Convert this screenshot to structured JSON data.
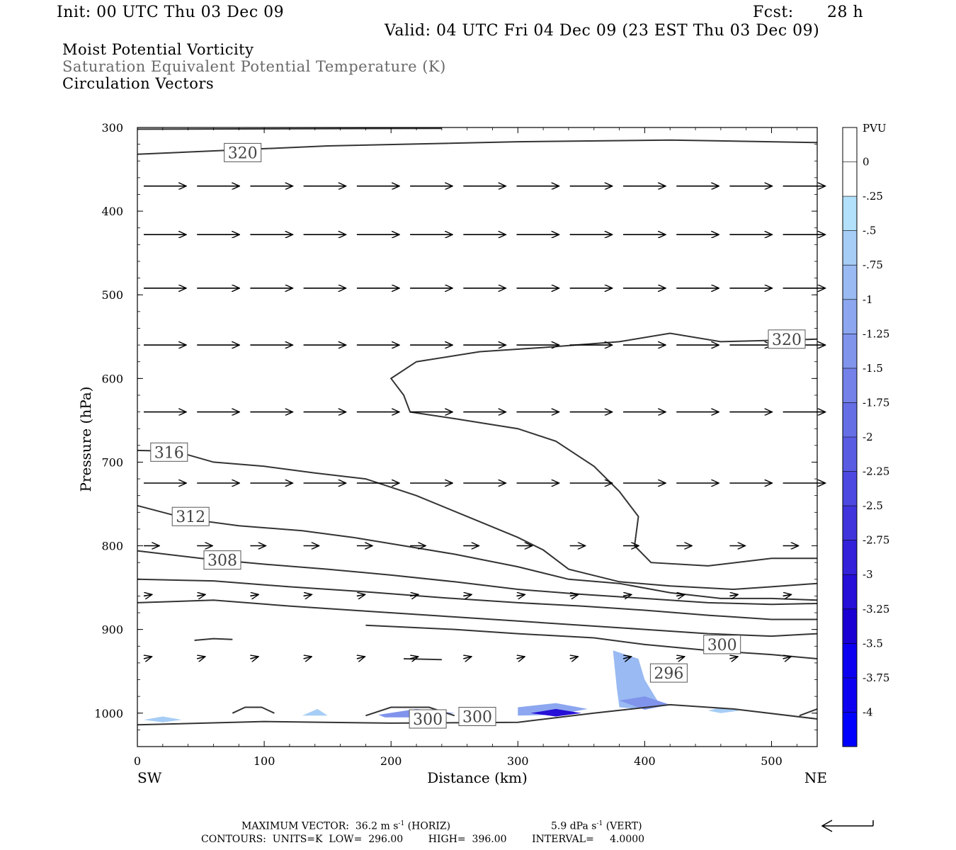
{
  "header": {
    "init": "Init: 00 UTC Thu 03 Dec 09",
    "fcst_label": "Fcst:",
    "fcst_value": "28 h",
    "valid": "Valid: 04 UTC Fri 04 Dec 09 (23 EST Thu 03 Dec 09)"
  },
  "fields": {
    "line1": "Moist Potential Vorticity",
    "line2": "Saturation Equivalent Potential Temperature (K)",
    "line3": "Circulation Vectors"
  },
  "footer": {
    "max_vector_text": "MAXIMUM VECTOR:  36.2 m s",
    "max_vector_horiz": "(HORIZ)",
    "max_vector_vert_val": "5.9 dPa s",
    "max_vector_vert": "(VERT)",
    "sup_exp": "-1",
    "contours_text": "CONTOURS:  UNITS=K  LOW=  296.00        HIGH=  396.00        INTERVAL=     4.0000"
  },
  "colors": {
    "contour": "#333333",
    "pv_levels": [
      "#b3e0fa",
      "#a6cdf6",
      "#99baf2",
      "#8ca7ef",
      "#8094ec",
      "#7381e9",
      "#666ee6",
      "#5a5be3",
      "#4d48e0",
      "#4035dc",
      "#3322d9",
      "#260fd6",
      "#1a00d3",
      "#0d00f0",
      "#0000ff"
    ]
  },
  "chart_data": {
    "type": "cross-section",
    "xlabel": "Distance (km)",
    "ylabel": "Pressure (hPa)",
    "x_range": [
      0,
      536
    ],
    "y_range": [
      300,
      1040
    ],
    "x_ticks": [
      0,
      100,
      200,
      300,
      400,
      500
    ],
    "y_ticks": [
      300,
      400,
      500,
      600,
      700,
      800,
      900,
      1000
    ],
    "x_endpoints": {
      "left": "SW",
      "right": "NE"
    },
    "colorbar": {
      "units": "PVU",
      "labels": [
        "0",
        "-.25",
        "-.5",
        "-.75",
        "-1",
        "-1.25",
        "-1.5",
        "-1.75",
        "-2",
        "-2.25",
        "-2.5",
        "-2.75",
        "-3",
        "-3.25",
        "-3.5",
        "-3.75",
        "-4"
      ]
    },
    "contour_labels": [
      {
        "text": "320",
        "x": 83,
        "p": 330
      },
      {
        "text": "320",
        "x": 512,
        "p": 553
      },
      {
        "text": "316",
        "x": 25,
        "p": 688
      },
      {
        "text": "312",
        "x": 42,
        "p": 765
      },
      {
        "text": "308",
        "x": 67,
        "p": 817
      },
      {
        "text": "300",
        "x": 461,
        "p": 918
      },
      {
        "text": "296",
        "x": 419,
        "p": 952
      },
      {
        "text": "300",
        "x": 229,
        "p": 1007
      },
      {
        "text": "300",
        "x": 268,
        "p": 1004
      }
    ],
    "contours": [
      {
        "level": "320",
        "points": [
          [
            0,
            332
          ],
          [
            150,
            322
          ],
          [
            300,
            317
          ],
          [
            420,
            315
          ],
          [
            536,
            318
          ]
        ]
      },
      {
        "level": "upper",
        "points": [
          [
            0,
            302
          ],
          [
            240,
            301
          ]
        ]
      },
      {
        "level": "320b",
        "points": [
          [
            536,
            553
          ],
          [
            460,
            556
          ],
          [
            420,
            546
          ],
          [
            380,
            556
          ],
          [
            320,
            563
          ],
          [
            270,
            568
          ],
          [
            220,
            580
          ],
          [
            200,
            600
          ],
          [
            210,
            620
          ],
          [
            215,
            640
          ],
          [
            250,
            648
          ],
          [
            300,
            660
          ],
          [
            330,
            675
          ],
          [
            360,
            705
          ],
          [
            380,
            735
          ],
          [
            395,
            765
          ],
          [
            392,
            800
          ],
          [
            405,
            820
          ],
          [
            450,
            824
          ],
          [
            500,
            815
          ],
          [
            536,
            815
          ]
        ]
      },
      {
        "level": "316",
        "points": [
          [
            0,
            686
          ],
          [
            30,
            687
          ],
          [
            60,
            700
          ],
          [
            100,
            705
          ],
          [
            140,
            713
          ],
          [
            180,
            720
          ],
          [
            220,
            740
          ],
          [
            260,
            765
          ],
          [
            300,
            790
          ],
          [
            320,
            805
          ],
          [
            340,
            828
          ],
          [
            380,
            843
          ],
          [
            420,
            848
          ],
          [
            470,
            852
          ],
          [
            500,
            849
          ],
          [
            536,
            845
          ]
        ]
      },
      {
        "level": "312",
        "points": [
          [
            0,
            752
          ],
          [
            40,
            768
          ],
          [
            80,
            776
          ],
          [
            130,
            782
          ],
          [
            170,
            790
          ],
          [
            210,
            800
          ],
          [
            250,
            810
          ],
          [
            300,
            825
          ],
          [
            340,
            840
          ],
          [
            380,
            845
          ],
          [
            420,
            856
          ],
          [
            460,
            863
          ],
          [
            500,
            863
          ],
          [
            536,
            865
          ]
        ]
      },
      {
        "level": "308",
        "points": [
          [
            0,
            806
          ],
          [
            50,
            815
          ],
          [
            100,
            822
          ],
          [
            150,
            828
          ],
          [
            200,
            835
          ],
          [
            250,
            843
          ],
          [
            300,
            852
          ],
          [
            350,
            858
          ],
          [
            400,
            863
          ],
          [
            450,
            868
          ],
          [
            500,
            870
          ],
          [
            536,
            869
          ]
        ]
      },
      {
        "level": "304",
        "points": [
          [
            0,
            840
          ],
          [
            60,
            842
          ],
          [
            120,
            849
          ],
          [
            180,
            855
          ],
          [
            240,
            862
          ],
          [
            300,
            868
          ],
          [
            350,
            872
          ],
          [
            400,
            877
          ],
          [
            450,
            883
          ],
          [
            500,
            888
          ],
          [
            536,
            888
          ]
        ]
      },
      {
        "level": "302",
        "points": [
          [
            0,
            868
          ],
          [
            60,
            865
          ],
          [
            120,
            872
          ],
          [
            180,
            878
          ],
          [
            240,
            884
          ],
          [
            300,
            890
          ],
          [
            350,
            895
          ],
          [
            400,
            900
          ],
          [
            450,
            905
          ],
          [
            500,
            908
          ],
          [
            536,
            905
          ]
        ]
      },
      {
        "level": "300",
        "points": [
          [
            180,
            895
          ],
          [
            250,
            900
          ],
          [
            300,
            905
          ],
          [
            360,
            910
          ],
          [
            400,
            918
          ],
          [
            450,
            925
          ],
          [
            500,
            930
          ],
          [
            536,
            935
          ]
        ]
      },
      {
        "level": "ground",
        "points": [
          [
            0,
            1014
          ],
          [
            100,
            1010
          ],
          [
            200,
            1012
          ],
          [
            300,
            1011
          ],
          [
            360,
            1000
          ],
          [
            420,
            990
          ],
          [
            470,
            995
          ],
          [
            536,
            1007
          ]
        ]
      },
      {
        "level": "small1",
        "points": [
          [
            45,
            913
          ],
          [
            60,
            911
          ],
          [
            75,
            912
          ]
        ]
      },
      {
        "level": "small2",
        "points": [
          [
            210,
            935
          ],
          [
            240,
            936
          ]
        ]
      },
      {
        "level": "small3",
        "points": [
          [
            75,
            1000
          ],
          [
            85,
            993
          ],
          [
            98,
            993
          ],
          [
            108,
            1000
          ]
        ]
      },
      {
        "level": "small4",
        "points": [
          [
            180,
            1003
          ],
          [
            200,
            993
          ],
          [
            230,
            993
          ],
          [
            250,
            1003
          ]
        ]
      },
      {
        "level": "small5",
        "points": [
          [
            522,
            1003
          ],
          [
            536,
            995
          ]
        ]
      }
    ],
    "vectors": [
      {
        "row_p": 370,
        "dir_deg": 0
      },
      {
        "row_p": 428,
        "dir_deg": 0
      },
      {
        "row_p": 492,
        "dir_deg": 0
      },
      {
        "row_p": 560,
        "dir_deg": 0
      },
      {
        "row_p": 640,
        "dir_deg": 0
      },
      {
        "row_p": 725,
        "dir_deg": 0
      },
      {
        "row_p": 800,
        "dir_deg": 0
      },
      {
        "row_p": 860,
        "dir_deg": -10
      },
      {
        "row_p": 935,
        "dir_deg": -15
      }
    ],
    "pv_blobs": [
      {
        "level": 2,
        "points": [
          [
            375,
            925
          ],
          [
            395,
            935
          ],
          [
            400,
            960
          ],
          [
            410,
            985
          ],
          [
            395,
            995
          ],
          [
            380,
            993
          ],
          [
            378,
            970
          ]
        ]
      },
      {
        "level": 4,
        "points": [
          [
            380,
            985
          ],
          [
            400,
            980
          ],
          [
            420,
            990
          ],
          [
            400,
            996
          ]
        ]
      },
      {
        "level": 3,
        "points": [
          [
            300,
            993
          ],
          [
            330,
            988
          ],
          [
            355,
            995
          ],
          [
            330,
            1002
          ],
          [
            300,
            1003
          ]
        ]
      },
      {
        "level": 11,
        "points": [
          [
            310,
            1000
          ],
          [
            330,
            995
          ],
          [
            350,
            1000
          ],
          [
            330,
            1004
          ]
        ]
      },
      {
        "level": 4,
        "points": [
          [
            190,
            1002
          ],
          [
            220,
            995
          ],
          [
            250,
            1000
          ],
          [
            225,
            1005
          ],
          [
            195,
            1005
          ]
        ]
      },
      {
        "level": 1,
        "points": [
          [
            5,
            1008
          ],
          [
            20,
            1004
          ],
          [
            35,
            1008
          ],
          [
            20,
            1011
          ]
        ]
      },
      {
        "level": 1,
        "points": [
          [
            130,
            1003
          ],
          [
            142,
            995
          ],
          [
            150,
            1003
          ]
        ]
      },
      {
        "level": 1,
        "points": [
          [
            450,
            997
          ],
          [
            460,
            993
          ],
          [
            475,
            997
          ],
          [
            460,
            1000
          ]
        ]
      }
    ]
  }
}
